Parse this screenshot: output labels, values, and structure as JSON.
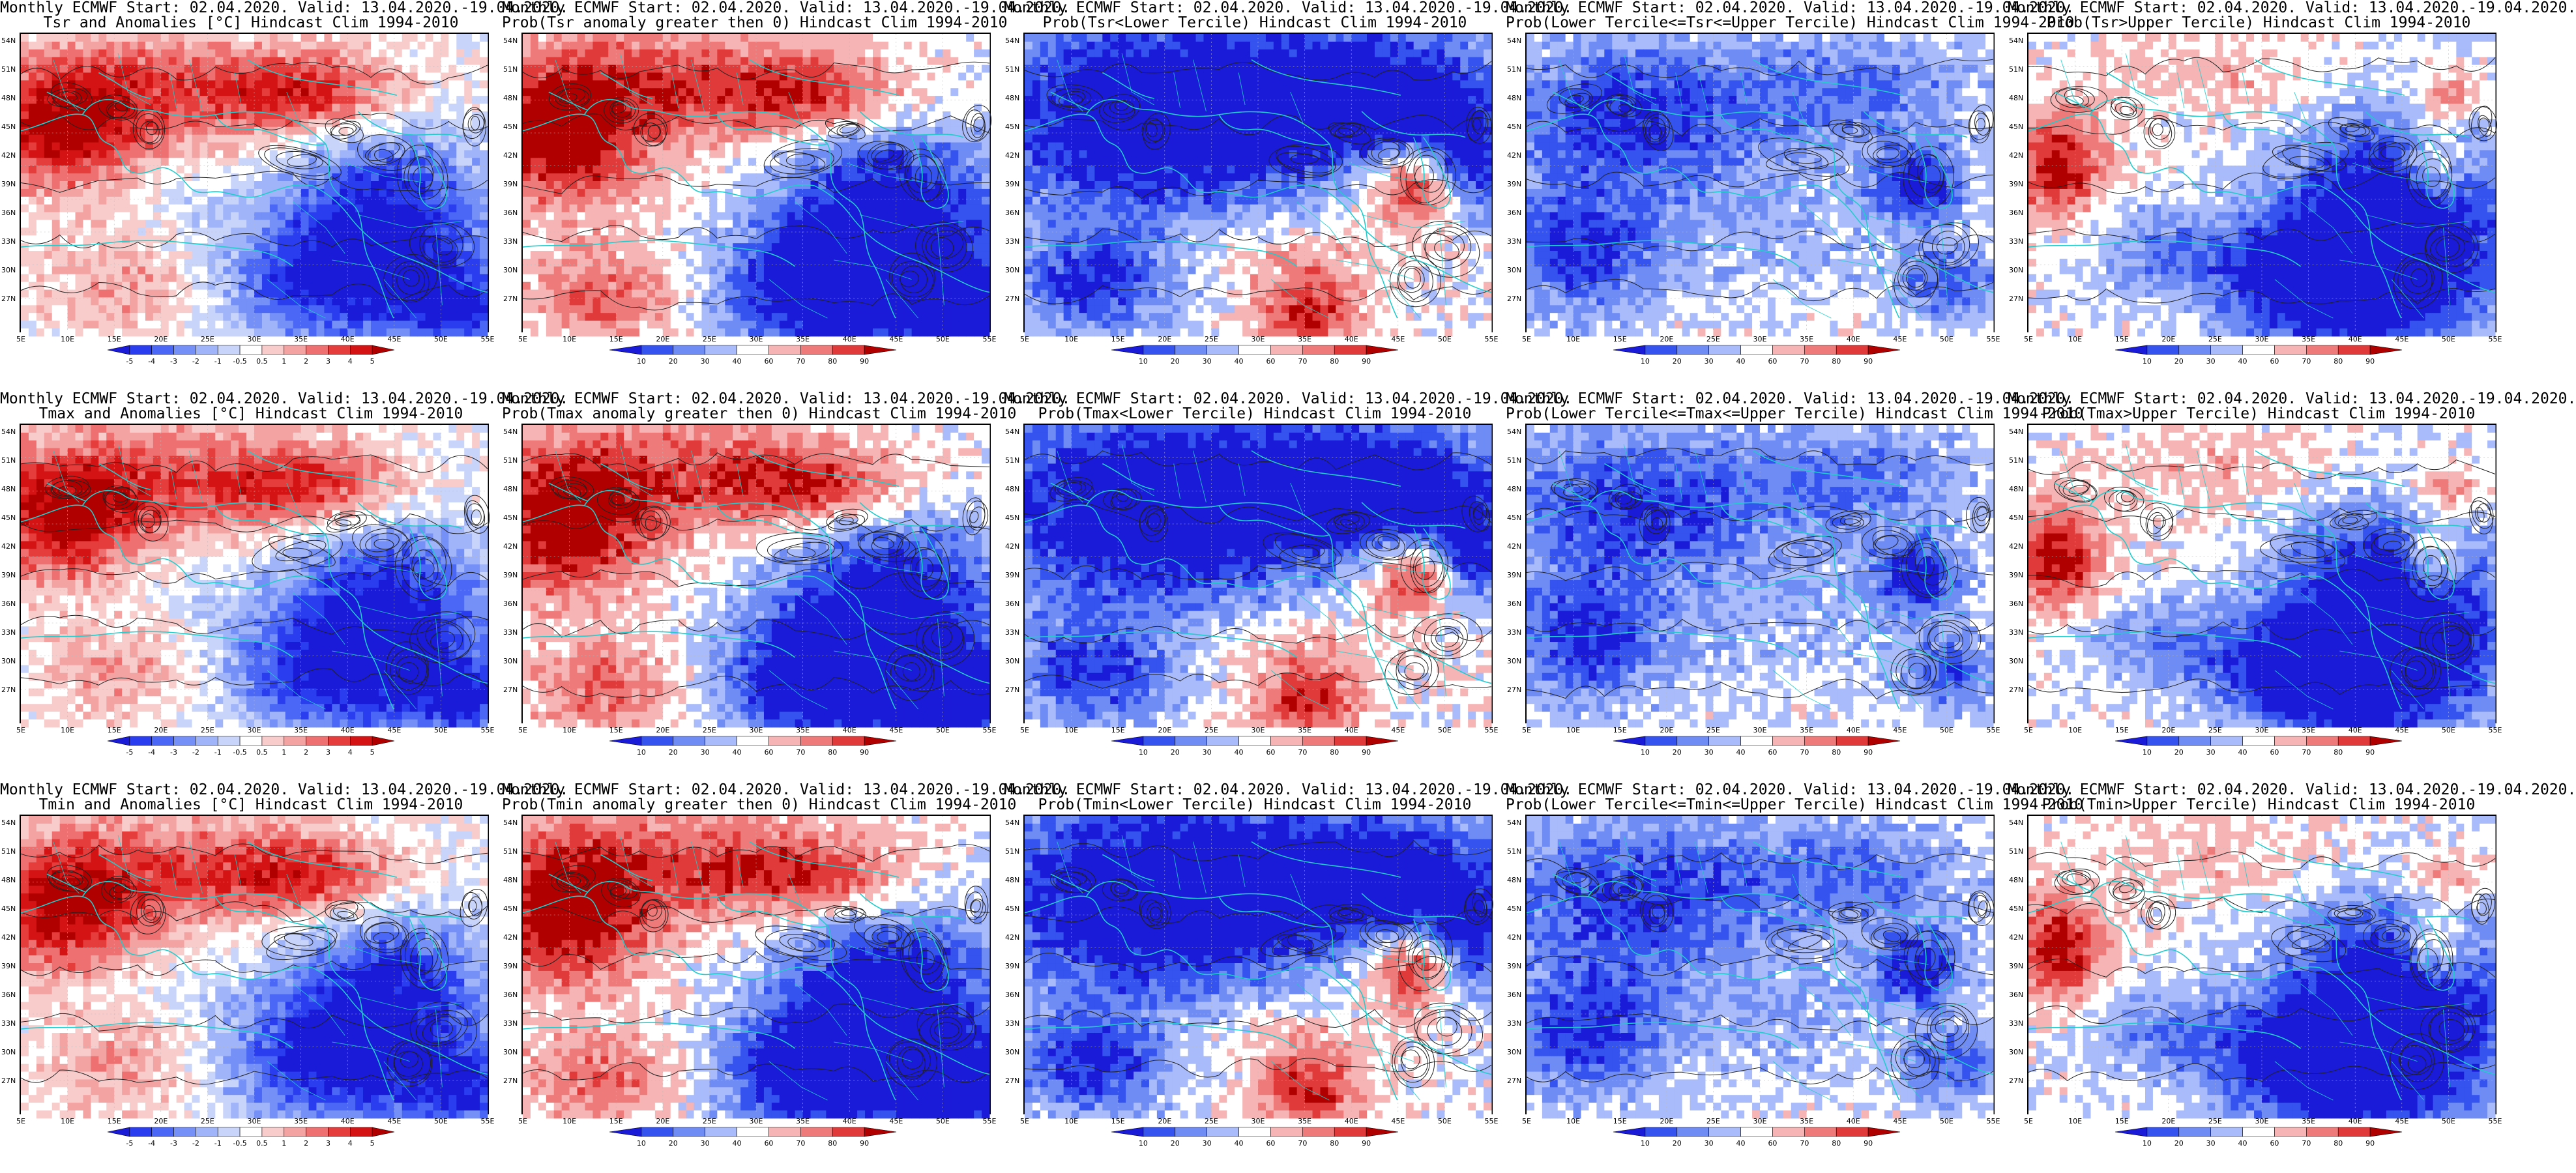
{
  "rows": [
    {
      "variable": "Tsr",
      "panels": [
        {
          "kind": "anom",
          "line1": "Monthly ECMWF Start: 02.04.2020. Valid: 13.04.2020.-19.04.2020.",
          "line2": "Tsr and Anomalies [°C] Hindcast Clim 1994-2010"
        },
        {
          "kind": "prob",
          "line1": "Monthly ECMWF Start: 02.04.2020. Valid: 13.04.2020.-19.04.2020.",
          "line2": "Prob(Tsr anomaly greater then 0) Hindcast Clim 1994-2010"
        },
        {
          "kind": "lower",
          "line1": "Monthly ECMWF Start: 02.04.2020. Valid: 13.04.2020.-19.04.2020.",
          "line2": "Prob(Tsr<Lower Tercile) Hindcast Clim 1994-2010"
        },
        {
          "kind": "middle",
          "line1": "Monthly ECMWF Start: 02.04.2020. Valid: 13.04.2020.-19.04.2020.",
          "line2": "Prob(Lower Tercile<=Tsr<=Upper Tercile) Hindcast Clim 1994-2010"
        },
        {
          "kind": "upper",
          "line1": "Monthly ECMWF Start: 02.04.2020. Valid: 13.04.2020.-19.04.2020.",
          "line2": "Prob(Tsr>Upper Tercile) Hindcast Clim 1994-2010"
        }
      ]
    },
    {
      "variable": "Tmax",
      "panels": [
        {
          "kind": "anom",
          "line1": "Monthly ECMWF Start: 02.04.2020. Valid: 13.04.2020.-19.04.2020.",
          "line2": "Tmax and Anomalies [°C] Hindcast Clim 1994-2010"
        },
        {
          "kind": "prob",
          "line1": "Monthly ECMWF Start: 02.04.2020. Valid: 13.04.2020.-19.04.2020.",
          "line2": "Prob(Tmax anomaly greater then 0) Hindcast Clim 1994-2010"
        },
        {
          "kind": "lower",
          "line1": "Monthly ECMWF Start: 02.04.2020. Valid: 13.04.2020.-19.04.2020.",
          "line2": "Prob(Tmax<Lower Tercile) Hindcast Clim 1994-2010"
        },
        {
          "kind": "middle",
          "line1": "Monthly ECMWF Start: 02.04.2020. Valid: 13.04.2020.-19.04.2020.",
          "line2": "Prob(Lower Tercile<=Tmax<=Upper Tercile) Hindcast Clim 1994-2010"
        },
        {
          "kind": "upper",
          "line1": "Monthly ECMWF Start: 02.04.2020. Valid: 13.04.2020.-19.04.2020.",
          "line2": "Prob(Tmax>Upper Tercile) Hindcast Clim 1994-2010"
        }
      ]
    },
    {
      "variable": "Tmin",
      "panels": [
        {
          "kind": "anom",
          "line1": "Monthly ECMWF Start: 02.04.2020. Valid: 13.04.2020.-19.04.2020.",
          "line2": "Tmin and Anomalies [°C] Hindcast Clim 1994-2010"
        },
        {
          "kind": "prob",
          "line1": "Monthly ECMWF Start: 02.04.2020. Valid: 13.04.2020.-19.04.2020.",
          "line2": "Prob(Tmin anomaly greater then 0) Hindcast Clim 1994-2010"
        },
        {
          "kind": "lower",
          "line1": "Monthly ECMWF Start: 02.04.2020. Valid: 13.04.2020.-19.04.2020.",
          "line2": "Prob(Tmin<Lower Tercile) Hindcast Clim 1994-2010"
        },
        {
          "kind": "middle",
          "line1": "Monthly ECMWF Start: 02.04.2020. Valid: 13.04.2020.-19.04.2020.",
          "line2": "Prob(Lower Tercile<=Tmin<=Upper Tercile) Hindcast Clim 1994-2010"
        },
        {
          "kind": "upper",
          "line1": "Monthly ECMWF Start: 02.04.2020. Valid: 13.04.2020.-19.04.2020.",
          "line2": "Prob(Tmin>Upper Tercile) Hindcast Clim 1994-2010"
        }
      ]
    }
  ],
  "axes": {
    "lat_labels": [
      "54N",
      "51N",
      "48N",
      "45N",
      "42N",
      "39N",
      "36N",
      "33N",
      "30N",
      "27N"
    ],
    "lon_labels": [
      "5E",
      "10E",
      "15E",
      "20E",
      "25E",
      "30E",
      "35E",
      "40E",
      "45E",
      "50E",
      "55E"
    ]
  },
  "colorbars": {
    "anom": {
      "labels": [
        "-5",
        "-4",
        "-3",
        "-2",
        "-1",
        "-0.5",
        "0.5",
        "1",
        "2",
        "3",
        "4",
        "5"
      ],
      "colors": [
        "#1a1ad9",
        "#2a3ef0",
        "#4a68f5",
        "#7590f7",
        "#a0b4f9",
        "#c9d4fb",
        "#ffffff",
        "#f9cccc",
        "#f4a3a3",
        "#ee7070",
        "#e53c3c",
        "#d41414",
        "#b00000"
      ]
    },
    "prob": {
      "labels": [
        "10",
        "20",
        "30",
        "40",
        "60",
        "70",
        "80",
        "90"
      ],
      "colors": [
        "#1a1ad9",
        "#3553ee",
        "#6f8cf5",
        "#a9bbfa",
        "#ffffff",
        "#f6b4b4",
        "#ee7a7a",
        "#e03a3a",
        "#b00000"
      ]
    }
  },
  "colors": {
    "coast": "#22cccc",
    "contour": "#222222",
    "grid": "#bbbbbb"
  }
}
